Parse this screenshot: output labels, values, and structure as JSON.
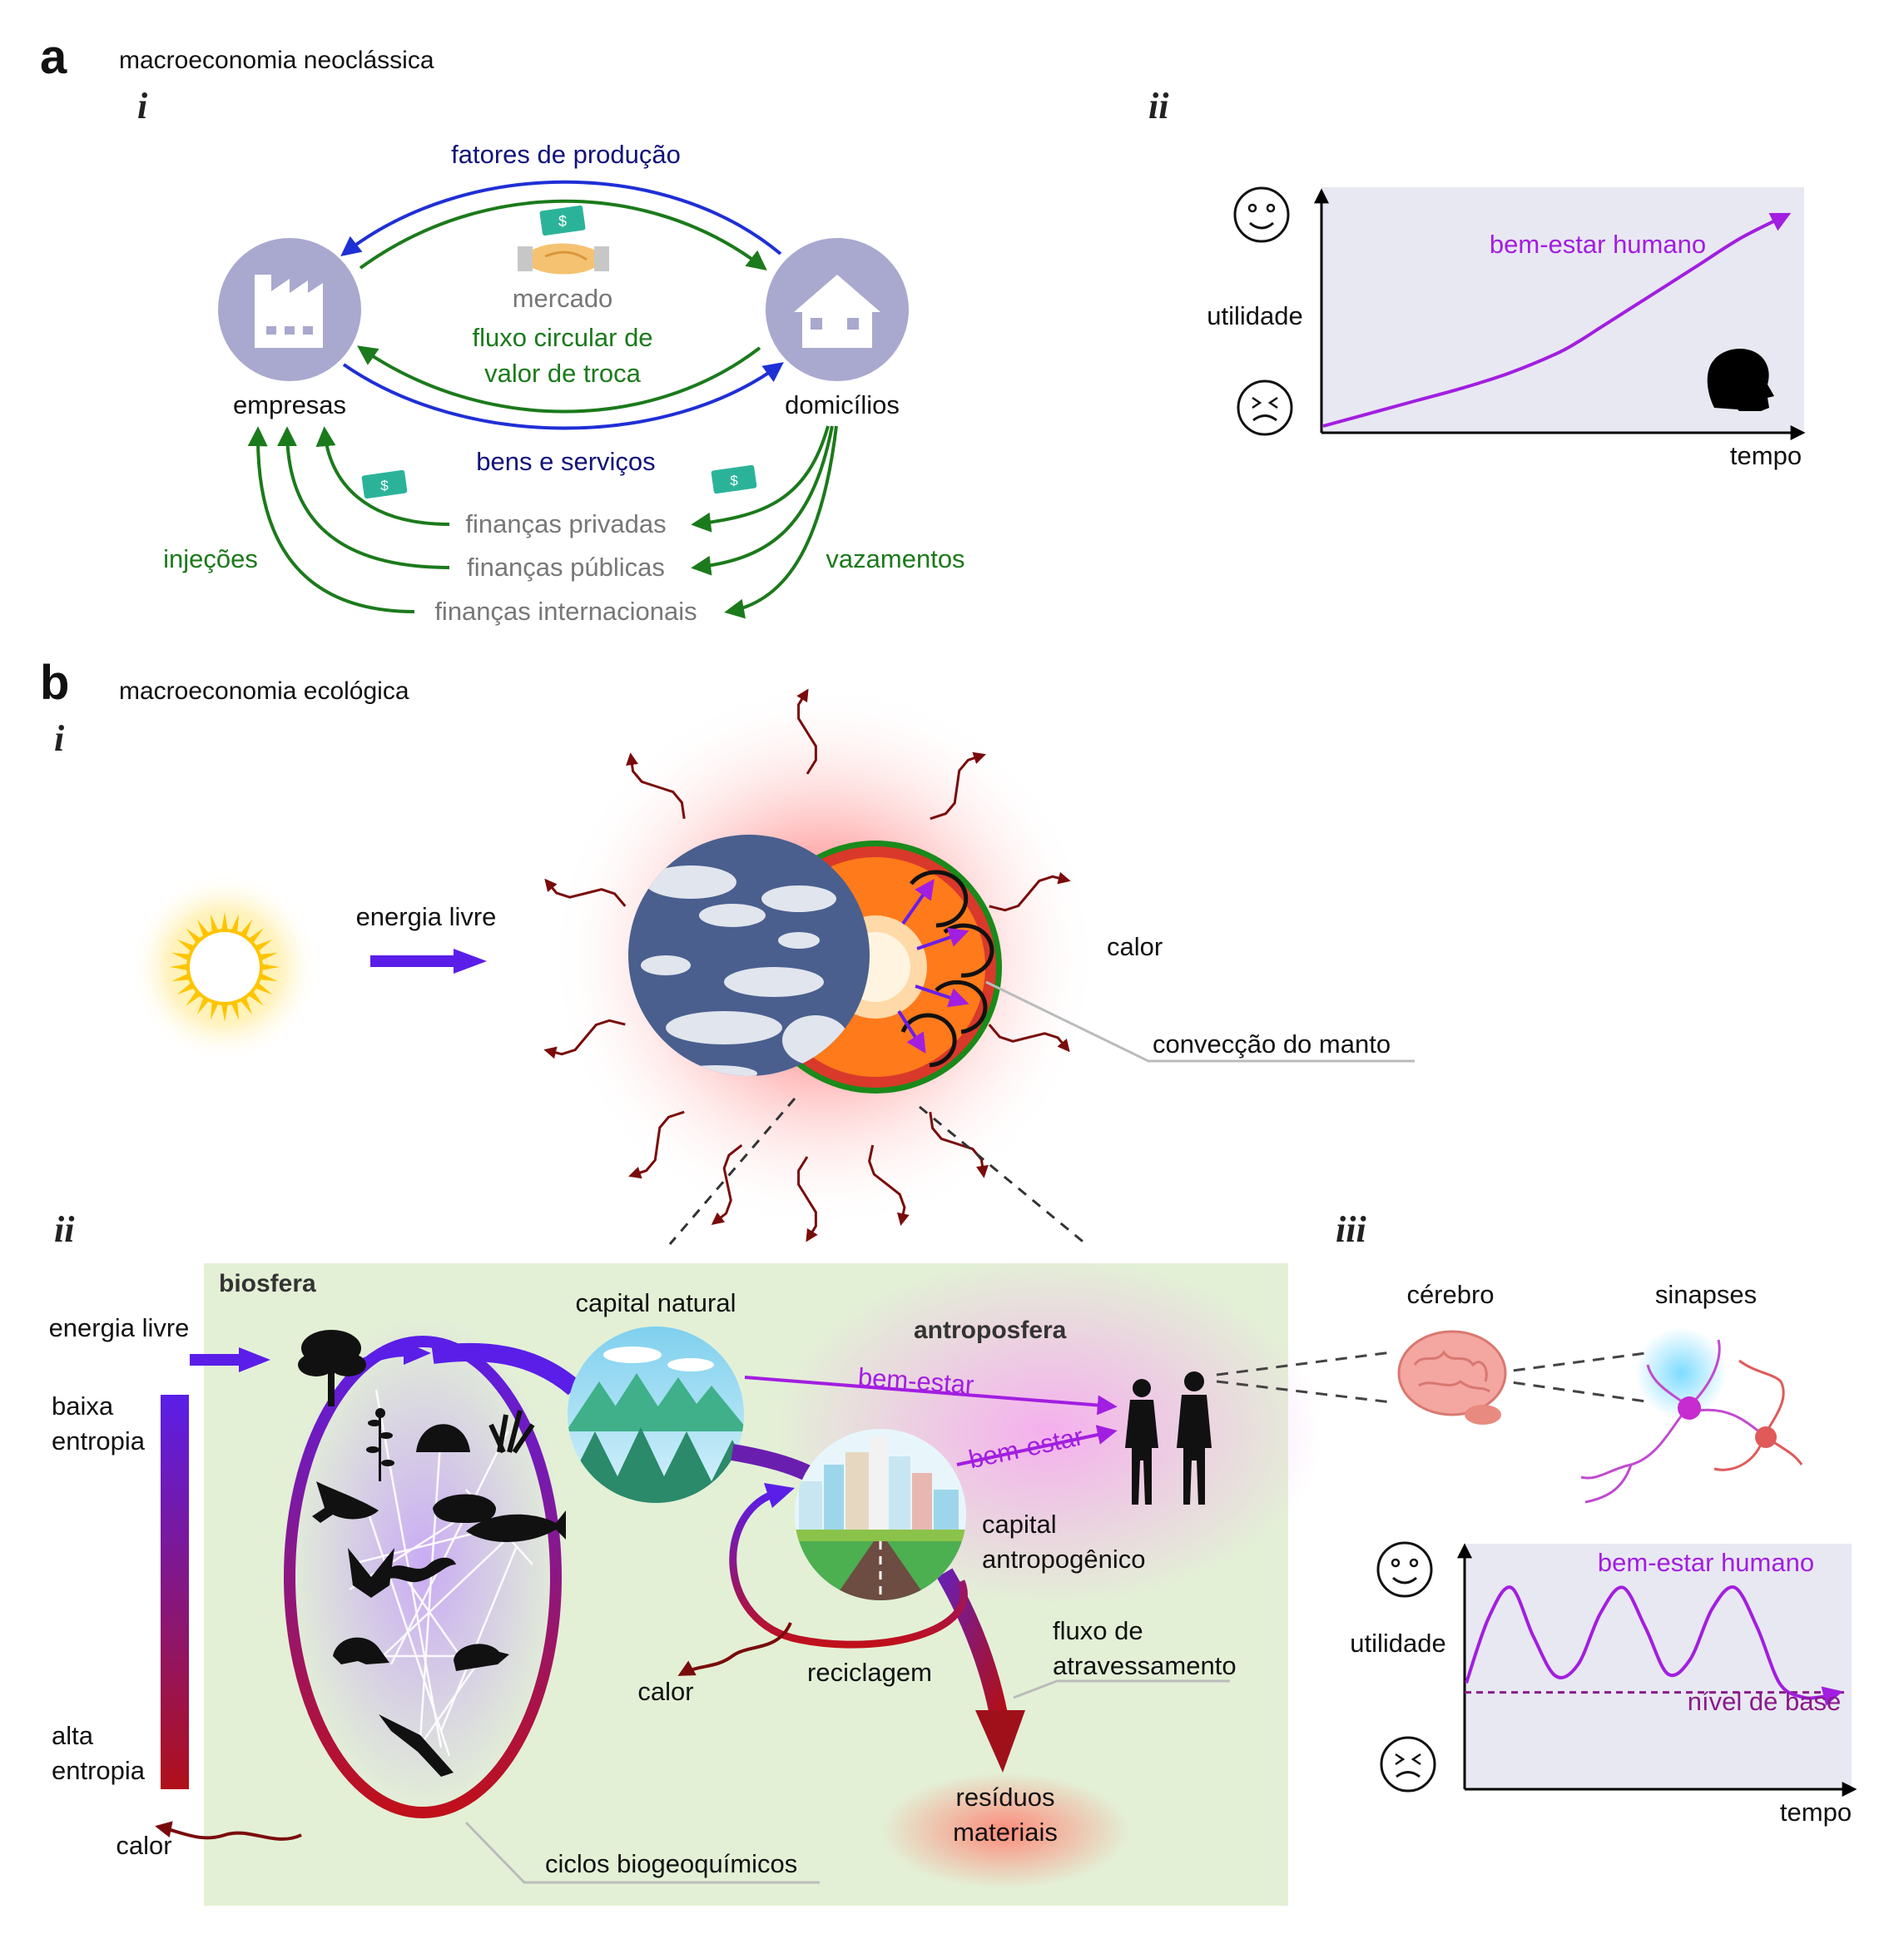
{
  "panel_a": {
    "letter": "a",
    "title": "macroeconomia neoclássica",
    "sub_i": "i",
    "sub_ii": "ii",
    "firms_label": "empresas",
    "households_label": "domicílios",
    "factors_label": "fatores de produção",
    "goods_label": "bens e serviços",
    "market_label": "mercado",
    "circular_flow_line1": "fluxo circular de",
    "circular_flow_line2": "valor de troca",
    "private_finance": "finanças privadas",
    "public_finance": "finanças públicas",
    "international_finance": "finanças internacionais",
    "injections": "injeções",
    "leakages": "vazamentos",
    "money_symbol": "$",
    "chart": {
      "ylabel": "utilidade",
      "xlabel": "tempo",
      "series_label": "bem-estar humano"
    }
  },
  "panel_b": {
    "letter": "b",
    "title": "macroeconomia ecológica",
    "sub_i": "i",
    "sub_ii": "ii",
    "sub_iii": "iii",
    "free_energy_top": "energia livre",
    "heat_top": "calor",
    "mantle_convection": "convecção do manto",
    "biosphere": "biosfera",
    "anthroposphere": "antroposfera",
    "free_energy": "energia livre",
    "low_entropy_1": "baixa",
    "low_entropy_2": "entropia",
    "high_entropy_1": "alta",
    "high_entropy_2": "entropia",
    "heat_left": "calor",
    "natural_capital": "capital natural",
    "wellbeing_1": "bem-estar",
    "wellbeing_2": "bem-estar",
    "anthropogenic_capital_1": "capital",
    "anthropogenic_capital_2": "antropogênico",
    "recycling": "reciclagem",
    "heat_mid": "calor",
    "throughput_1": "fluxo de",
    "throughput_2": "atravessamento",
    "waste_1": "resíduos",
    "waste_2": "materiais",
    "biogeochemical_cycles": "ciclos biogeoquímicos",
    "brain": "cérebro",
    "synapses": "sinapses",
    "chart": {
      "ylabel": "utilidade",
      "xlabel": "tempo",
      "series_label": "bem-estar humano",
      "baseline_label": "nível de base"
    }
  },
  "colors": {
    "blue_arrow": "#1f2fd6",
    "green_arrow": "#1b7a1b",
    "purple": "#a21ee0",
    "dark_red": "#7a0b0b",
    "node_fill": "#a9a8cf",
    "chart_bg": "#e8e8f2",
    "biosphere_bg": "#e3f0d6"
  },
  "chart_data": [
    {
      "type": "line",
      "title": "",
      "xlabel": "tempo",
      "ylabel": "utilidade",
      "series": [
        {
          "name": "bem-estar humano",
          "x": [
            0,
            0.1,
            0.2,
            0.3,
            0.4,
            0.5,
            0.55,
            0.6,
            0.7,
            0.8,
            0.9,
            1.0
          ],
          "y": [
            0.0,
            0.06,
            0.12,
            0.18,
            0.25,
            0.34,
            0.4,
            0.47,
            0.61,
            0.75,
            0.89,
            1.0
          ]
        }
      ],
      "ylim": [
        0,
        1
      ],
      "xlim": [
        0,
        1
      ],
      "grid": false
    },
    {
      "type": "line",
      "title": "",
      "xlabel": "tempo",
      "ylabel": "utilidade",
      "series": [
        {
          "name": "bem-estar humano",
          "x": [
            0,
            0.06,
            0.12,
            0.18,
            0.24,
            0.3,
            0.36,
            0.42,
            0.48,
            0.54,
            0.6,
            0.66,
            0.72,
            0.78,
            0.84,
            0.9,
            0.95,
            1.0
          ],
          "y": [
            0.42,
            0.7,
            0.83,
            0.62,
            0.45,
            0.5,
            0.72,
            0.83,
            0.66,
            0.46,
            0.52,
            0.74,
            0.83,
            0.66,
            0.42,
            0.36,
            0.36,
            0.38
          ]
        },
        {
          "name": "nível de base",
          "x": [
            0,
            1
          ],
          "y": [
            0.38,
            0.38
          ]
        }
      ],
      "ylim": [
        0,
        1
      ],
      "xlim": [
        0,
        1
      ],
      "grid": false
    }
  ]
}
